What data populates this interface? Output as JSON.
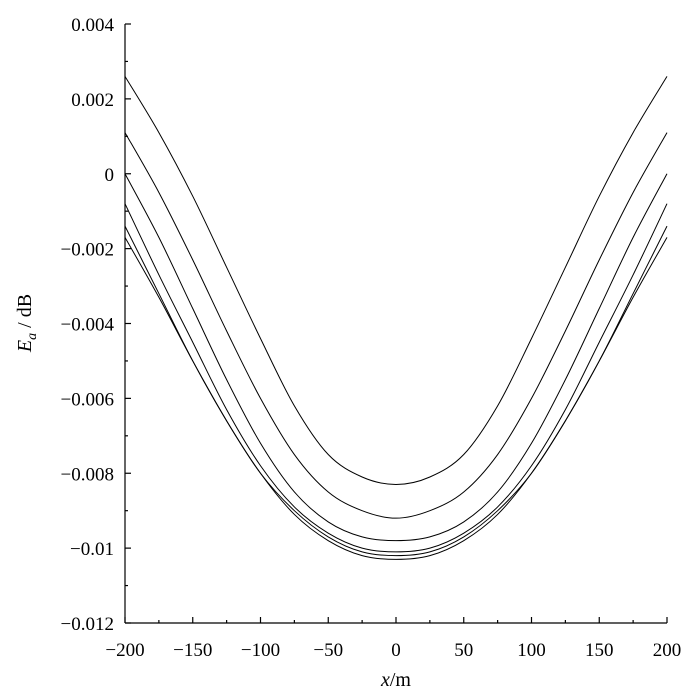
{
  "chart_data": {
    "type": "line",
    "xlabel": {
      "var": "x",
      "unit": "/m"
    },
    "ylabel": {
      "var": "E",
      "sub": "a",
      "unit": " / dB"
    },
    "xlim": [
      -200,
      200
    ],
    "ylim": [
      -0.012,
      0.004
    ],
    "grid": false,
    "xticks": [
      -200,
      -150,
      -100,
      -50,
      0,
      50,
      100,
      150,
      200
    ],
    "xtick_labels": [
      "−200",
      "−150",
      "−100",
      "−50",
      "0",
      "50",
      "100",
      "150",
      "200"
    ],
    "yticks": [
      0.004,
      0.002,
      0,
      -0.002,
      -0.004,
      -0.006,
      -0.008,
      -0.01,
      -0.012
    ],
    "ytick_labels": [
      "0.004",
      "0.002",
      "0",
      "−0.002",
      "−0.004",
      "−0.006",
      "−0.008",
      "−0.01",
      "−0.012"
    ],
    "x": [
      -200,
      -175,
      -150,
      -125,
      -100,
      -75,
      -50,
      -25,
      0,
      25,
      50,
      75,
      100,
      125,
      150,
      175,
      200
    ],
    "series": [
      {
        "values": [
          0.0026,
          0.0011,
          -0.0006,
          -0.0025,
          -0.0044,
          -0.0062,
          -0.0075,
          -0.0081,
          -0.0083,
          -0.0081,
          -0.0075,
          -0.0062,
          -0.0044,
          -0.0025,
          -0.0006,
          0.0011,
          0.0026
        ]
      },
      {
        "values": [
          0.0011,
          -0.0005,
          -0.0023,
          -0.0042,
          -0.006,
          -0.0075,
          -0.0085,
          -0.009,
          -0.0092,
          -0.009,
          -0.0085,
          -0.0075,
          -0.006,
          -0.0042,
          -0.0023,
          -0.0005,
          0.0011
        ]
      },
      {
        "values": [
          0.0,
          -0.0017,
          -0.0036,
          -0.0055,
          -0.0072,
          -0.0085,
          -0.0093,
          -0.0097,
          -0.0098,
          -0.0097,
          -0.0093,
          -0.0085,
          -0.0072,
          -0.0055,
          -0.0036,
          -0.0017,
          0.0
        ]
      },
      {
        "values": [
          -0.0008,
          -0.0027,
          -0.0045,
          -0.0063,
          -0.0078,
          -0.0089,
          -0.0096,
          -0.01,
          -0.0101,
          -0.01,
          -0.0096,
          -0.0089,
          -0.0078,
          -0.0063,
          -0.0045,
          -0.0027,
          -0.0008
        ]
      },
      {
        "values": [
          -0.0014,
          -0.0032,
          -0.005,
          -0.0066,
          -0.008,
          -0.009,
          -0.0097,
          -0.0101,
          -0.0102,
          -0.0101,
          -0.0097,
          -0.009,
          -0.008,
          -0.0066,
          -0.005,
          -0.0032,
          -0.0014
        ]
      },
      {
        "values": [
          -0.0017,
          -0.0033,
          -0.005,
          -0.0066,
          -0.008,
          -0.0091,
          -0.0098,
          -0.0102,
          -0.0103,
          -0.0102,
          -0.0098,
          -0.0091,
          -0.008,
          -0.0066,
          -0.005,
          -0.0033,
          -0.0017
        ]
      }
    ]
  }
}
